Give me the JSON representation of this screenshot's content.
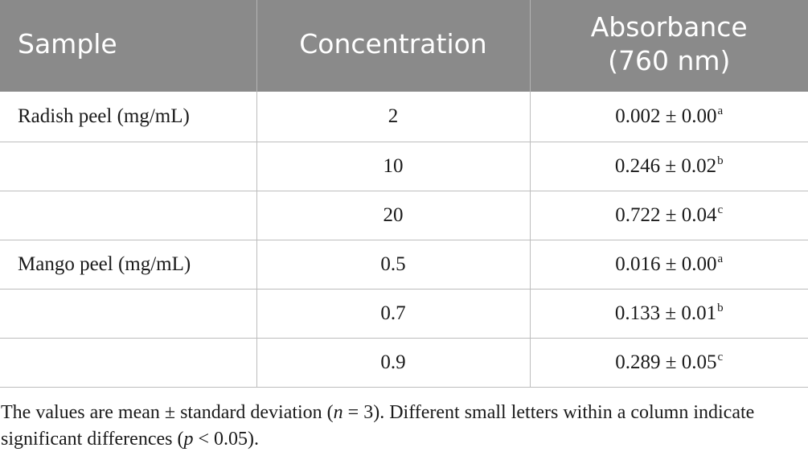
{
  "table": {
    "headers": {
      "sample": "Sample",
      "concentration": "Concentration",
      "absorbance_line1": "Absorbance",
      "absorbance_line2": "(760 nm)"
    },
    "rows": [
      {
        "sample": "Radish peel (mg/mL)",
        "concentration": "2",
        "absorbance": "0.002 ± 0.00",
        "sig": "a"
      },
      {
        "sample": "",
        "concentration": "10",
        "absorbance": "0.246 ± 0.02",
        "sig": "b"
      },
      {
        "sample": "",
        "concentration": "20",
        "absorbance": "0.722 ± 0.04",
        "sig": "c"
      },
      {
        "sample": "Mango peel (mg/mL)",
        "concentration": "0.5",
        "absorbance": "0.016 ± 0.00",
        "sig": "a"
      },
      {
        "sample": "",
        "concentration": "0.7",
        "absorbance": "0.133 ± 0.01",
        "sig": "b"
      },
      {
        "sample": "",
        "concentration": "0.9",
        "absorbance": "0.289 ± 0.05",
        "sig": "c"
      }
    ]
  },
  "footnote": {
    "part1": "The values are mean ± standard deviation (",
    "n_var": "n",
    "part2": " = 3). Different small letters within a column indicate significant differences (",
    "p_var": "p",
    "part3": " < 0.05)."
  },
  "colors": {
    "header_bg": "#8a8a8a",
    "header_text": "#ffffff",
    "rule": "#bdbdbd"
  }
}
